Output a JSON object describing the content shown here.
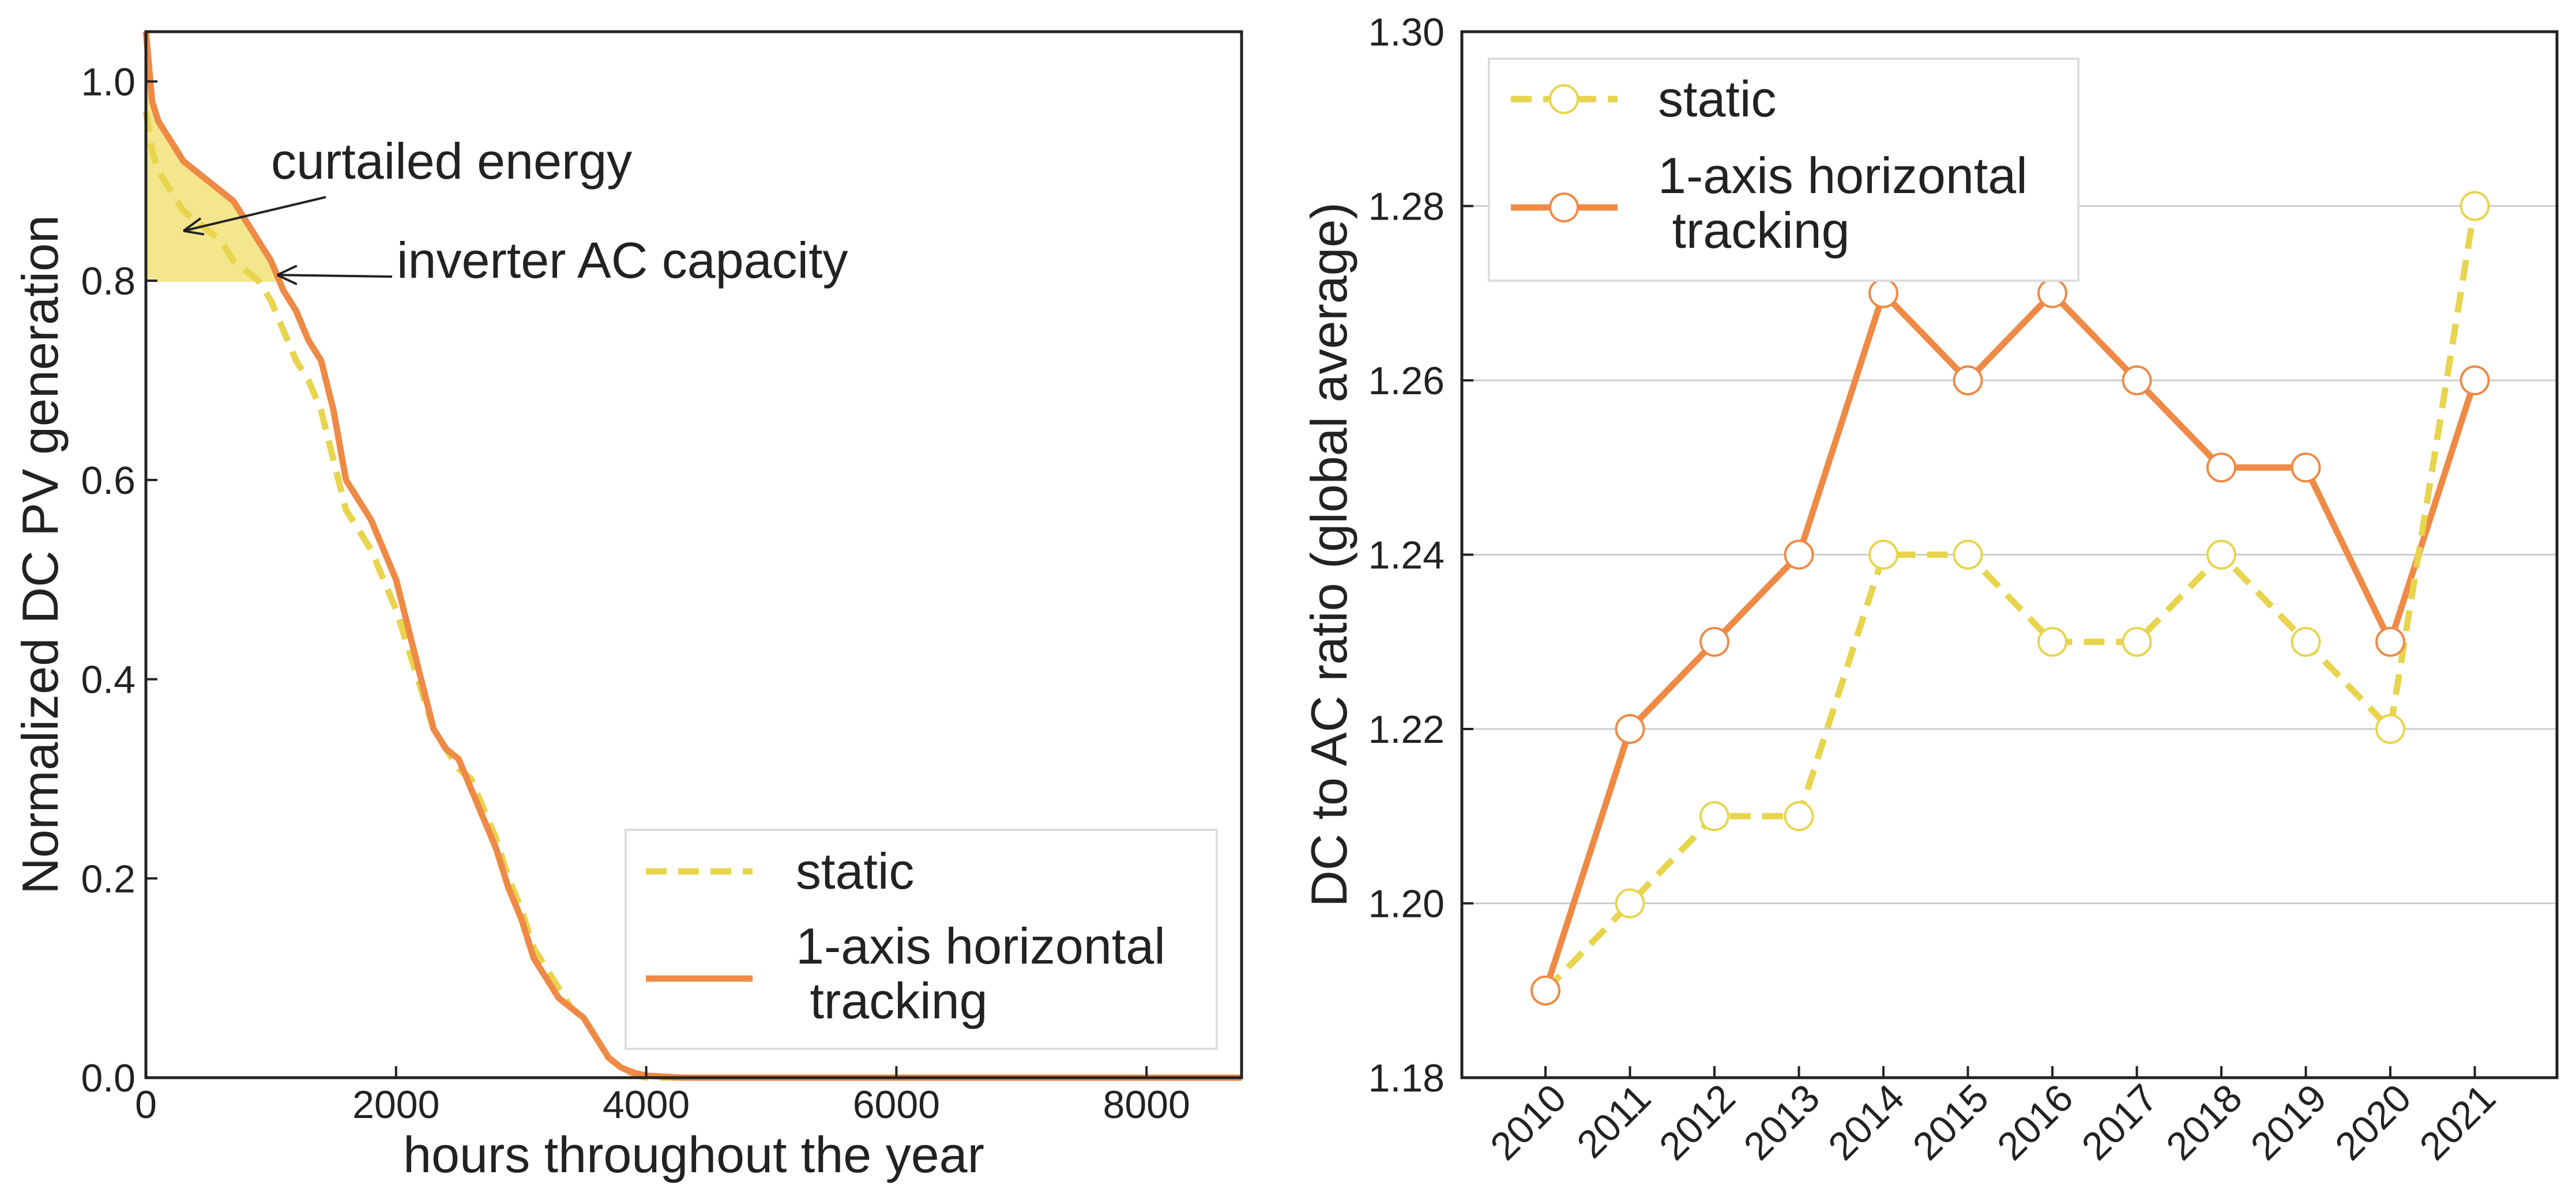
{
  "colors": {
    "static": "#E8D44D",
    "tracking": "#EE8A45",
    "curtail_fill": "#F3E68C",
    "axis": "#222222",
    "grid": "#CCCCCC",
    "legend_border": "#DDDDDD"
  },
  "chart_data": [
    {
      "type": "line",
      "title": "",
      "xlabel": "hours throughout the year",
      "ylabel": "Normalized DC PV generation",
      "xlim": [
        0,
        8760
      ],
      "ylim": [
        0,
        1.05
      ],
      "xticks": [
        0,
        2000,
        4000,
        6000,
        8000
      ],
      "xtick_labels": [
        "0",
        "2000",
        "4000",
        "6000",
        "8000"
      ],
      "yticks": [
        0,
        0.2,
        0.4,
        0.6,
        0.8,
        1.0
      ],
      "ytick_labels": [
        "0.0",
        "0.2",
        "0.4",
        "0.6",
        "0.8",
        "1.0"
      ],
      "grid": false,
      "legend_position": "lower-right",
      "series": [
        {
          "name": "static",
          "style": "dashed",
          "points": [
            [
              0,
              0.97
            ],
            [
              50,
              0.93
            ],
            [
              100,
              0.91
            ],
            [
              200,
              0.89
            ],
            [
              300,
              0.87
            ],
            [
              400,
              0.86
            ],
            [
              500,
              0.85
            ],
            [
              600,
              0.84
            ],
            [
              700,
              0.82
            ],
            [
              800,
              0.81
            ],
            [
              900,
              0.8
            ],
            [
              1000,
              0.78
            ],
            [
              1100,
              0.75
            ],
            [
              1200,
              0.72
            ],
            [
              1300,
              0.7
            ],
            [
              1400,
              0.67
            ],
            [
              1500,
              0.62
            ],
            [
              1600,
              0.57
            ],
            [
              1700,
              0.55
            ],
            [
              1800,
              0.53
            ],
            [
              1900,
              0.5
            ],
            [
              2000,
              0.47
            ],
            [
              2100,
              0.43
            ],
            [
              2200,
              0.39
            ],
            [
              2300,
              0.35
            ],
            [
              2400,
              0.33
            ],
            [
              2500,
              0.31
            ],
            [
              2600,
              0.3
            ],
            [
              2700,
              0.27
            ],
            [
              2800,
              0.24
            ],
            [
              2900,
              0.2
            ],
            [
              3000,
              0.17
            ],
            [
              3100,
              0.13
            ],
            [
              3200,
              0.11
            ],
            [
              3300,
              0.09
            ],
            [
              3400,
              0.07
            ],
            [
              3500,
              0.06
            ],
            [
              3600,
              0.04
            ],
            [
              3700,
              0.02
            ],
            [
              3800,
              0.01
            ],
            [
              3900,
              0.003
            ],
            [
              4000,
              0
            ],
            [
              8760,
              0
            ]
          ]
        },
        {
          "name": "1-axis horizontal\n tracking",
          "style": "solid",
          "points": [
            [
              0,
              1.05
            ],
            [
              50,
              0.98
            ],
            [
              100,
              0.96
            ],
            [
              200,
              0.94
            ],
            [
              300,
              0.92
            ],
            [
              400,
              0.91
            ],
            [
              500,
              0.9
            ],
            [
              600,
              0.89
            ],
            [
              700,
              0.88
            ],
            [
              800,
              0.86
            ],
            [
              900,
              0.84
            ],
            [
              1000,
              0.82
            ],
            [
              1100,
              0.79
            ],
            [
              1200,
              0.77
            ],
            [
              1300,
              0.74
            ],
            [
              1400,
              0.72
            ],
            [
              1500,
              0.67
            ],
            [
              1600,
              0.6
            ],
            [
              1700,
              0.58
            ],
            [
              1800,
              0.56
            ],
            [
              1900,
              0.53
            ],
            [
              2000,
              0.5
            ],
            [
              2100,
              0.45
            ],
            [
              2200,
              0.4
            ],
            [
              2300,
              0.35
            ],
            [
              2400,
              0.33
            ],
            [
              2500,
              0.32
            ],
            [
              2600,
              0.29
            ],
            [
              2700,
              0.26
            ],
            [
              2800,
              0.23
            ],
            [
              2900,
              0.19
            ],
            [
              3000,
              0.16
            ],
            [
              3100,
              0.12
            ],
            [
              3200,
              0.1
            ],
            [
              3300,
              0.08
            ],
            [
              3400,
              0.07
            ],
            [
              3500,
              0.06
            ],
            [
              3600,
              0.04
            ],
            [
              3700,
              0.02
            ],
            [
              3800,
              0.01
            ],
            [
              3900,
              0.005
            ],
            [
              4000,
              0.002
            ],
            [
              4300,
              0
            ],
            [
              8760,
              0
            ]
          ]
        }
      ],
      "annotations": [
        {
          "text": "curtailed energy",
          "arrow_to": [
            300,
            0.85
          ]
        },
        {
          "text": "inverter AC capacity",
          "arrow_to": [
            1050,
            0.8
          ]
        }
      ],
      "shaded_region": {
        "label": "curtailed energy",
        "y_min": 0.8,
        "x_max": 1050
      }
    },
    {
      "type": "line",
      "title": "",
      "xlabel": "",
      "ylabel": "DC to AC ratio (global average)",
      "categories": [
        "2010",
        "2011",
        "2012",
        "2013",
        "2014",
        "2015",
        "2016",
        "2017",
        "2018",
        "2019",
        "2020",
        "2021"
      ],
      "ylim": [
        1.18,
        1.3
      ],
      "yticks": [
        1.18,
        1.2,
        1.22,
        1.24,
        1.26,
        1.28,
        1.3
      ],
      "ytick_labels": [
        "1.18",
        "1.20",
        "1.22",
        "1.24",
        "1.26",
        "1.28",
        "1.30"
      ],
      "grid": true,
      "legend_position": "top-left",
      "series": [
        {
          "name": "static",
          "style": "dashed",
          "marker": "circle",
          "values": [
            1.19,
            1.2,
            1.21,
            1.21,
            1.24,
            1.24,
            1.23,
            1.23,
            1.24,
            1.23,
            1.22,
            1.28
          ]
        },
        {
          "name": "1-axis horizontal\n tracking",
          "style": "solid",
          "marker": "circle",
          "values": [
            1.19,
            1.22,
            1.23,
            1.24,
            1.27,
            1.26,
            1.27,
            1.26,
            1.25,
            1.25,
            1.23,
            1.26
          ]
        }
      ]
    }
  ]
}
